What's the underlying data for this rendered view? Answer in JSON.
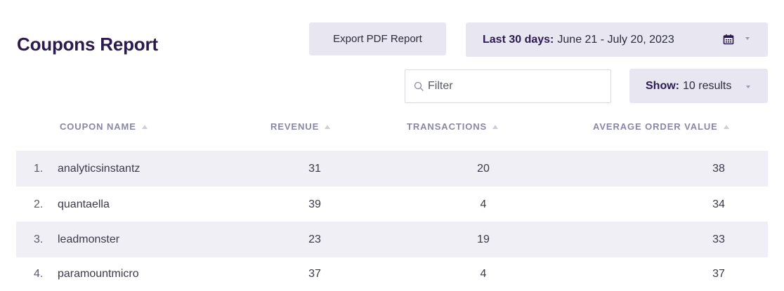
{
  "header": {
    "title": "Coupons Report",
    "export_label": "Export PDF Report",
    "date_range": {
      "label": "Last 30 days:",
      "range": "June 21 - July 20, 2023"
    }
  },
  "toolbar": {
    "filter_placeholder": "Filter",
    "show_label": "Show:",
    "show_value": "10 results"
  },
  "table": {
    "columns": [
      "COUPON NAME",
      "REVENUE",
      "TRANSACTIONS",
      "AVERAGE ORDER VALUE"
    ],
    "rows": [
      {
        "index": "1.",
        "name": "analyticsinstantz",
        "revenue": "31",
        "transactions": "20",
        "aov": "38"
      },
      {
        "index": "2.",
        "name": "quantaella",
        "revenue": "39",
        "transactions": "4",
        "aov": "34"
      },
      {
        "index": "3.",
        "name": "leadmonster",
        "revenue": "23",
        "transactions": "19",
        "aov": "33"
      },
      {
        "index": "4.",
        "name": "paramountmicro",
        "revenue": "37",
        "transactions": "4",
        "aov": "37"
      }
    ]
  },
  "colors": {
    "title": "#2b1a4e",
    "button_bg": "#e8e6f0",
    "row_shade": "#f0eff5",
    "header_text": "#8a87a6"
  },
  "icons": {
    "calendar": "calendar-icon",
    "search": "search-icon",
    "sort": "sort-asc-icon",
    "dropdown": "chevron-down-icon"
  }
}
